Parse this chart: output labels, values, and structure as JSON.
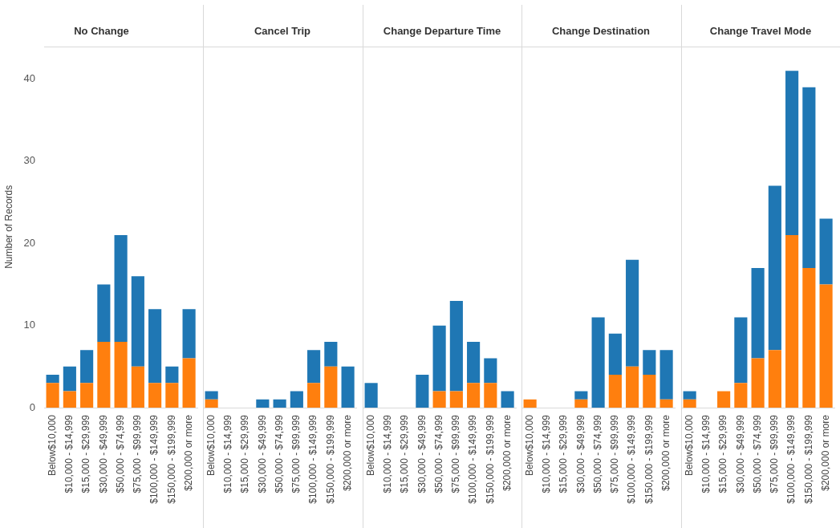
{
  "chart_data": [
    {
      "type": "bar",
      "title": "No Change",
      "ylabel": "Number of Records",
      "stacked": true,
      "legend": false,
      "grid": false,
      "categories": [
        "Below$10,000",
        "$10,000 - $14,999",
        "$15,000 - $29,999",
        "$30,000 - $49,999",
        "$50,000 - $74,999",
        "$75,000 - $99,999",
        "$100,000 - $149,999",
        "$150,000 - $199,999",
        "$200,000 or more"
      ],
      "ylim": [
        0,
        44
      ],
      "yticks": [
        0,
        10,
        20,
        30,
        40
      ],
      "series": [
        {
          "color": "#ff7f0e",
          "values": [
            3,
            2,
            3,
            8,
            8,
            5,
            3,
            3,
            6
          ]
        },
        {
          "color": "#1f77b4",
          "values": [
            1,
            3,
            4,
            7,
            13,
            11,
            9,
            2,
            6
          ]
        }
      ]
    },
    {
      "type": "bar",
      "title": "Cancel Trip",
      "stacked": true,
      "legend": false,
      "grid": false,
      "tick_labels": "x",
      "categories": [
        "Below$10,000",
        "$10,000 - $14,999",
        "$15,000 - $29,999",
        "$30,000 - $49,999",
        "$50,000 - $74,999",
        "$75,000 - $99,999",
        "$100,000 - $149,999",
        "$150,000 - $199,999",
        "$200,000 or more"
      ],
      "ylim": [
        0,
        44
      ],
      "yticks": [
        0,
        10,
        20,
        30,
        40
      ],
      "series": [
        {
          "color": "#ff7f0e",
          "values": [
            1,
            0,
            0,
            0,
            0,
            0,
            3,
            5,
            0
          ]
        },
        {
          "color": "#1f77b4",
          "values": [
            1,
            0,
            0,
            1,
            1,
            2,
            4,
            3,
            5
          ]
        }
      ]
    },
    {
      "type": "bar",
      "title": "Change Departure Time",
      "stacked": true,
      "legend": false,
      "grid": false,
      "tick_labels": "x",
      "categories": [
        "Below$10,000",
        "$10,000 - $14,999",
        "$15,000 - $29,999",
        "$30,000 - $49,999",
        "$50,000 - $74,999",
        "$75,000 - $99,999",
        "$100,000 - $149,999",
        "$150,000 - $199,999",
        "$200,000 or more"
      ],
      "ylim": [
        0,
        44
      ],
      "yticks": [
        0,
        10,
        20,
        30,
        40
      ],
      "series": [
        {
          "color": "#ff7f0e",
          "values": [
            0,
            0,
            0,
            0,
            2,
            2,
            3,
            3,
            0
          ]
        },
        {
          "color": "#1f77b4",
          "values": [
            3,
            0,
            0,
            4,
            8,
            11,
            5,
            3,
            2
          ]
        }
      ]
    },
    {
      "type": "bar",
      "title": "Change Destination",
      "stacked": true,
      "legend": false,
      "grid": false,
      "tick_labels": "x",
      "categories": [
        "Below$10,000",
        "$10,000 - $14,999",
        "$15,000 - $29,999",
        "$30,000 - $49,999",
        "$50,000 - $74,999",
        "$75,000 - $99,999",
        "$100,000 - $149,999",
        "$150,000 - $199,999",
        "$200,000 or more"
      ],
      "ylim": [
        0,
        44
      ],
      "yticks": [
        0,
        10,
        20,
        30,
        40
      ],
      "series": [
        {
          "color": "#ff7f0e",
          "values": [
            1,
            0,
            0,
            1,
            0,
            4,
            5,
            4,
            1
          ]
        },
        {
          "color": "#1f77b4",
          "values": [
            0,
            0,
            0,
            1,
            11,
            5,
            13,
            3,
            6
          ]
        }
      ]
    },
    {
      "type": "bar",
      "title": "Change Travel Mode",
      "stacked": true,
      "legend": false,
      "grid": false,
      "tick_labels": "x",
      "categories": [
        "Below$10,000",
        "$10,000 - $14,999",
        "$15,000 - $29,999",
        "$30,000 - $49,999",
        "$50,000 - $74,999",
        "$75,000 - $99,999",
        "$100,000 - $149,999",
        "$150,000 - $199,999",
        "$200,000 or more"
      ],
      "ylim": [
        0,
        44
      ],
      "yticks": [
        0,
        10,
        20,
        30,
        40
      ],
      "series": [
        {
          "color": "#ff7f0e",
          "values": [
            1,
            0,
            2,
            3,
            6,
            7,
            21,
            17,
            15
          ]
        },
        {
          "color": "#1f77b4",
          "values": [
            1,
            0,
            0,
            8,
            11,
            20,
            20,
            22,
            8
          ]
        }
      ]
    }
  ]
}
